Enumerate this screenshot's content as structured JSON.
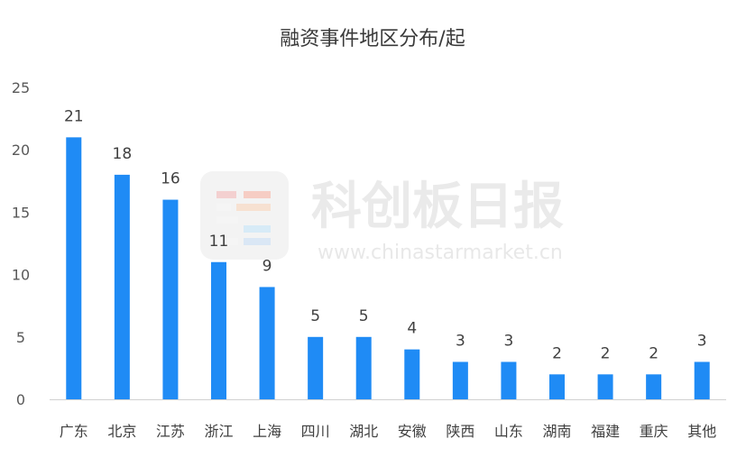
{
  "chart_data": {
    "type": "bar",
    "title": "融资事件地区分布/起",
    "categories": [
      "广东",
      "北京",
      "江苏",
      "浙江",
      "上海",
      "四川",
      "湖北",
      "安徽",
      "陕西",
      "山东",
      "湖南",
      "福建",
      "重庆",
      "其他"
    ],
    "values": [
      21,
      18,
      16,
      11,
      9,
      5,
      5,
      4,
      3,
      3,
      2,
      2,
      2,
      3
    ],
    "yticks": [
      0,
      5,
      10,
      15,
      20,
      25
    ],
    "ylim": [
      0,
      25
    ],
    "xlabel": "",
    "ylabel": "",
    "grid": false,
    "legend": "none",
    "bar_color": "#1f8bf5"
  },
  "watermark": {
    "name": "科创板日报",
    "url": "www.chinastarmarket.cn"
  }
}
